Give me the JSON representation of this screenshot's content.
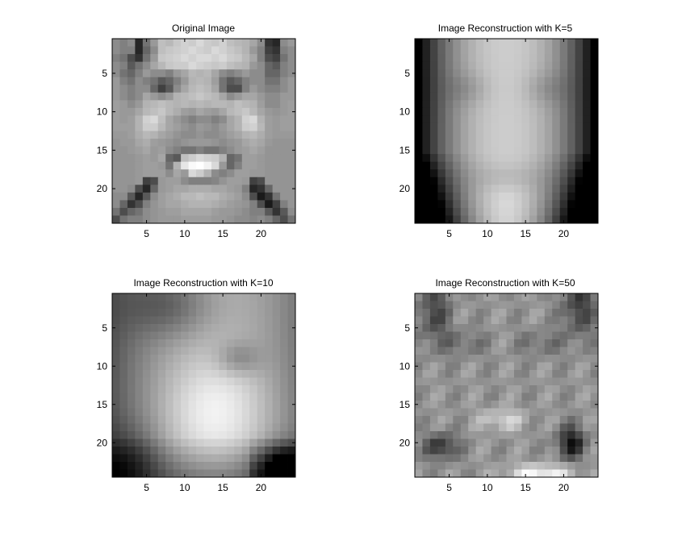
{
  "chart_data": [
    {
      "type": "heatmap",
      "title": "Original Image",
      "colormap": "gray",
      "xticks": [
        5,
        10,
        15,
        20
      ],
      "yticks": [
        5,
        10,
        15,
        20
      ],
      "xlim": [
        0.5,
        24.5
      ],
      "ylim": [
        0.5,
        24.5
      ],
      "grid": false,
      "values": [
        [
          0.55,
          0.5,
          0.55,
          0.15,
          0.45,
          0.6,
          0.75,
          0.72,
          0.78,
          0.82,
          0.8,
          0.85,
          0.8,
          0.78,
          0.82,
          0.75,
          0.72,
          0.7,
          0.65,
          0.55,
          0.2,
          0.15,
          0.55,
          0.6
        ],
        [
          0.55,
          0.5,
          0.5,
          0.15,
          0.4,
          0.55,
          0.75,
          0.78,
          0.8,
          0.82,
          0.85,
          0.82,
          0.8,
          0.85,
          0.82,
          0.78,
          0.75,
          0.7,
          0.6,
          0.5,
          0.25,
          0.2,
          0.5,
          0.55
        ],
        [
          0.5,
          0.45,
          0.3,
          0.2,
          0.45,
          0.6,
          0.78,
          0.8,
          0.82,
          0.85,
          0.82,
          0.85,
          0.85,
          0.82,
          0.85,
          0.8,
          0.78,
          0.72,
          0.65,
          0.5,
          0.3,
          0.25,
          0.45,
          0.55
        ],
        [
          0.55,
          0.5,
          0.35,
          0.45,
          0.55,
          0.65,
          0.72,
          0.78,
          0.8,
          0.8,
          0.85,
          0.82,
          0.8,
          0.78,
          0.8,
          0.75,
          0.72,
          0.7,
          0.6,
          0.55,
          0.4,
          0.35,
          0.5,
          0.55
        ],
        [
          0.55,
          0.45,
          0.4,
          0.5,
          0.6,
          0.55,
          0.55,
          0.5,
          0.6,
          0.65,
          0.72,
          0.7,
          0.72,
          0.65,
          0.55,
          0.5,
          0.55,
          0.6,
          0.55,
          0.55,
          0.4,
          0.4,
          0.5,
          0.55
        ],
        [
          0.6,
          0.5,
          0.45,
          0.55,
          0.5,
          0.45,
          0.35,
          0.4,
          0.5,
          0.6,
          0.7,
          0.72,
          0.7,
          0.62,
          0.45,
          0.35,
          0.4,
          0.5,
          0.55,
          0.55,
          0.45,
          0.45,
          0.55,
          0.6
        ],
        [
          0.6,
          0.55,
          0.5,
          0.55,
          0.55,
          0.4,
          0.25,
          0.35,
          0.55,
          0.65,
          0.72,
          0.75,
          0.72,
          0.65,
          0.45,
          0.3,
          0.3,
          0.5,
          0.6,
          0.55,
          0.5,
          0.5,
          0.55,
          0.6
        ],
        [
          0.6,
          0.55,
          0.5,
          0.55,
          0.65,
          0.6,
          0.55,
          0.6,
          0.7,
          0.72,
          0.75,
          0.78,
          0.75,
          0.72,
          0.65,
          0.55,
          0.6,
          0.65,
          0.65,
          0.6,
          0.55,
          0.55,
          0.6,
          0.6
        ],
        [
          0.62,
          0.6,
          0.55,
          0.6,
          0.7,
          0.72,
          0.75,
          0.72,
          0.7,
          0.72,
          0.7,
          0.72,
          0.7,
          0.72,
          0.72,
          0.7,
          0.75,
          0.72,
          0.7,
          0.62,
          0.55,
          0.55,
          0.6,
          0.62
        ],
        [
          0.62,
          0.6,
          0.6,
          0.65,
          0.72,
          0.75,
          0.78,
          0.72,
          0.68,
          0.62,
          0.6,
          0.65,
          0.62,
          0.6,
          0.65,
          0.72,
          0.75,
          0.78,
          0.72,
          0.65,
          0.6,
          0.58,
          0.6,
          0.62
        ],
        [
          0.62,
          0.6,
          0.62,
          0.7,
          0.82,
          0.85,
          0.75,
          0.65,
          0.6,
          0.55,
          0.5,
          0.55,
          0.55,
          0.5,
          0.55,
          0.65,
          0.7,
          0.82,
          0.85,
          0.7,
          0.62,
          0.6,
          0.62,
          0.62
        ],
        [
          0.62,
          0.62,
          0.62,
          0.7,
          0.8,
          0.8,
          0.72,
          0.65,
          0.62,
          0.58,
          0.55,
          0.6,
          0.58,
          0.55,
          0.6,
          0.65,
          0.7,
          0.8,
          0.82,
          0.72,
          0.62,
          0.6,
          0.62,
          0.62
        ],
        [
          0.6,
          0.6,
          0.62,
          0.68,
          0.72,
          0.7,
          0.65,
          0.62,
          0.58,
          0.55,
          0.55,
          0.58,
          0.55,
          0.55,
          0.58,
          0.62,
          0.65,
          0.7,
          0.72,
          0.68,
          0.62,
          0.6,
          0.6,
          0.6
        ],
        [
          0.58,
          0.6,
          0.6,
          0.65,
          0.68,
          0.62,
          0.6,
          0.58,
          0.55,
          0.58,
          0.6,
          0.6,
          0.6,
          0.58,
          0.55,
          0.58,
          0.6,
          0.65,
          0.68,
          0.65,
          0.6,
          0.58,
          0.58,
          0.58
        ],
        [
          0.58,
          0.58,
          0.6,
          0.62,
          0.65,
          0.6,
          0.62,
          0.55,
          0.5,
          0.45,
          0.45,
          0.5,
          0.45,
          0.45,
          0.5,
          0.55,
          0.6,
          0.62,
          0.65,
          0.62,
          0.58,
          0.58,
          0.58,
          0.58
        ],
        [
          0.58,
          0.58,
          0.58,
          0.6,
          0.62,
          0.6,
          0.65,
          0.4,
          0.35,
          0.75,
          0.8,
          0.85,
          0.82,
          0.8,
          0.7,
          0.4,
          0.45,
          0.62,
          0.62,
          0.6,
          0.58,
          0.58,
          0.58,
          0.58
        ],
        [
          0.58,
          0.58,
          0.58,
          0.6,
          0.62,
          0.62,
          0.6,
          0.45,
          0.7,
          0.9,
          0.98,
          1.0,
          0.95,
          0.85,
          0.6,
          0.4,
          0.5,
          0.62,
          0.62,
          0.6,
          0.58,
          0.58,
          0.58,
          0.58
        ],
        [
          0.58,
          0.58,
          0.58,
          0.6,
          0.62,
          0.62,
          0.62,
          0.55,
          0.65,
          0.6,
          0.85,
          0.8,
          0.7,
          0.55,
          0.5,
          0.55,
          0.62,
          0.62,
          0.6,
          0.6,
          0.58,
          0.58,
          0.58,
          0.58
        ],
        [
          0.58,
          0.58,
          0.58,
          0.6,
          0.25,
          0.3,
          0.6,
          0.62,
          0.62,
          0.55,
          0.5,
          0.5,
          0.5,
          0.52,
          0.58,
          0.62,
          0.62,
          0.6,
          0.25,
          0.3,
          0.58,
          0.58,
          0.58,
          0.58
        ],
        [
          0.58,
          0.58,
          0.55,
          0.3,
          0.15,
          0.4,
          0.6,
          0.62,
          0.65,
          0.65,
          0.68,
          0.68,
          0.68,
          0.65,
          0.65,
          0.62,
          0.6,
          0.5,
          0.15,
          0.2,
          0.4,
          0.58,
          0.58,
          0.58
        ],
        [
          0.55,
          0.55,
          0.35,
          0.15,
          0.35,
          0.55,
          0.62,
          0.65,
          0.68,
          0.72,
          0.72,
          0.75,
          0.72,
          0.72,
          0.68,
          0.65,
          0.62,
          0.55,
          0.3,
          0.1,
          0.2,
          0.45,
          0.58,
          0.58
        ],
        [
          0.55,
          0.4,
          0.2,
          0.3,
          0.5,
          0.58,
          0.62,
          0.65,
          0.65,
          0.68,
          0.7,
          0.7,
          0.7,
          0.68,
          0.65,
          0.62,
          0.6,
          0.58,
          0.5,
          0.3,
          0.1,
          0.25,
          0.5,
          0.58
        ],
        [
          0.45,
          0.3,
          0.4,
          0.45,
          0.55,
          0.58,
          0.6,
          0.62,
          0.62,
          0.65,
          0.65,
          0.65,
          0.65,
          0.62,
          0.6,
          0.6,
          0.58,
          0.55,
          0.5,
          0.5,
          0.35,
          0.2,
          0.35,
          0.55
        ],
        [
          0.3,
          0.45,
          0.5,
          0.5,
          0.55,
          0.58,
          0.6,
          0.6,
          0.6,
          0.62,
          0.62,
          0.62,
          0.62,
          0.6,
          0.6,
          0.58,
          0.55,
          0.55,
          0.52,
          0.55,
          0.5,
          0.4,
          0.3,
          0.45
        ]
      ]
    },
    {
      "type": "heatmap",
      "title": "Image Reconstruction with K=5",
      "colormap": "gray",
      "xticks": [
        5,
        10,
        15,
        20
      ],
      "yticks": [
        5,
        10,
        15,
        20
      ],
      "xlim": [
        0.5,
        24.5
      ],
      "ylim": [
        0.5,
        24.5
      ],
      "grid": false,
      "generator": "pca-k5"
    },
    {
      "type": "heatmap",
      "title": "Image Reconstruction with K=10",
      "colormap": "gray",
      "xticks": [
        5,
        10,
        15,
        20
      ],
      "yticks": [
        5,
        10,
        15,
        20
      ],
      "xlim": [
        0.5,
        24.5
      ],
      "ylim": [
        0.5,
        24.5
      ],
      "grid": false,
      "generator": "pca-k10"
    },
    {
      "type": "heatmap",
      "title": "Image Reconstruction with K=50",
      "colormap": "gray",
      "xticks": [
        5,
        10,
        15,
        20
      ],
      "yticks": [
        5,
        10,
        15,
        20
      ],
      "xlim": [
        0.5,
        24.5
      ],
      "ylim": [
        0.5,
        24.5
      ],
      "grid": false,
      "generator": "pca-k50"
    }
  ]
}
